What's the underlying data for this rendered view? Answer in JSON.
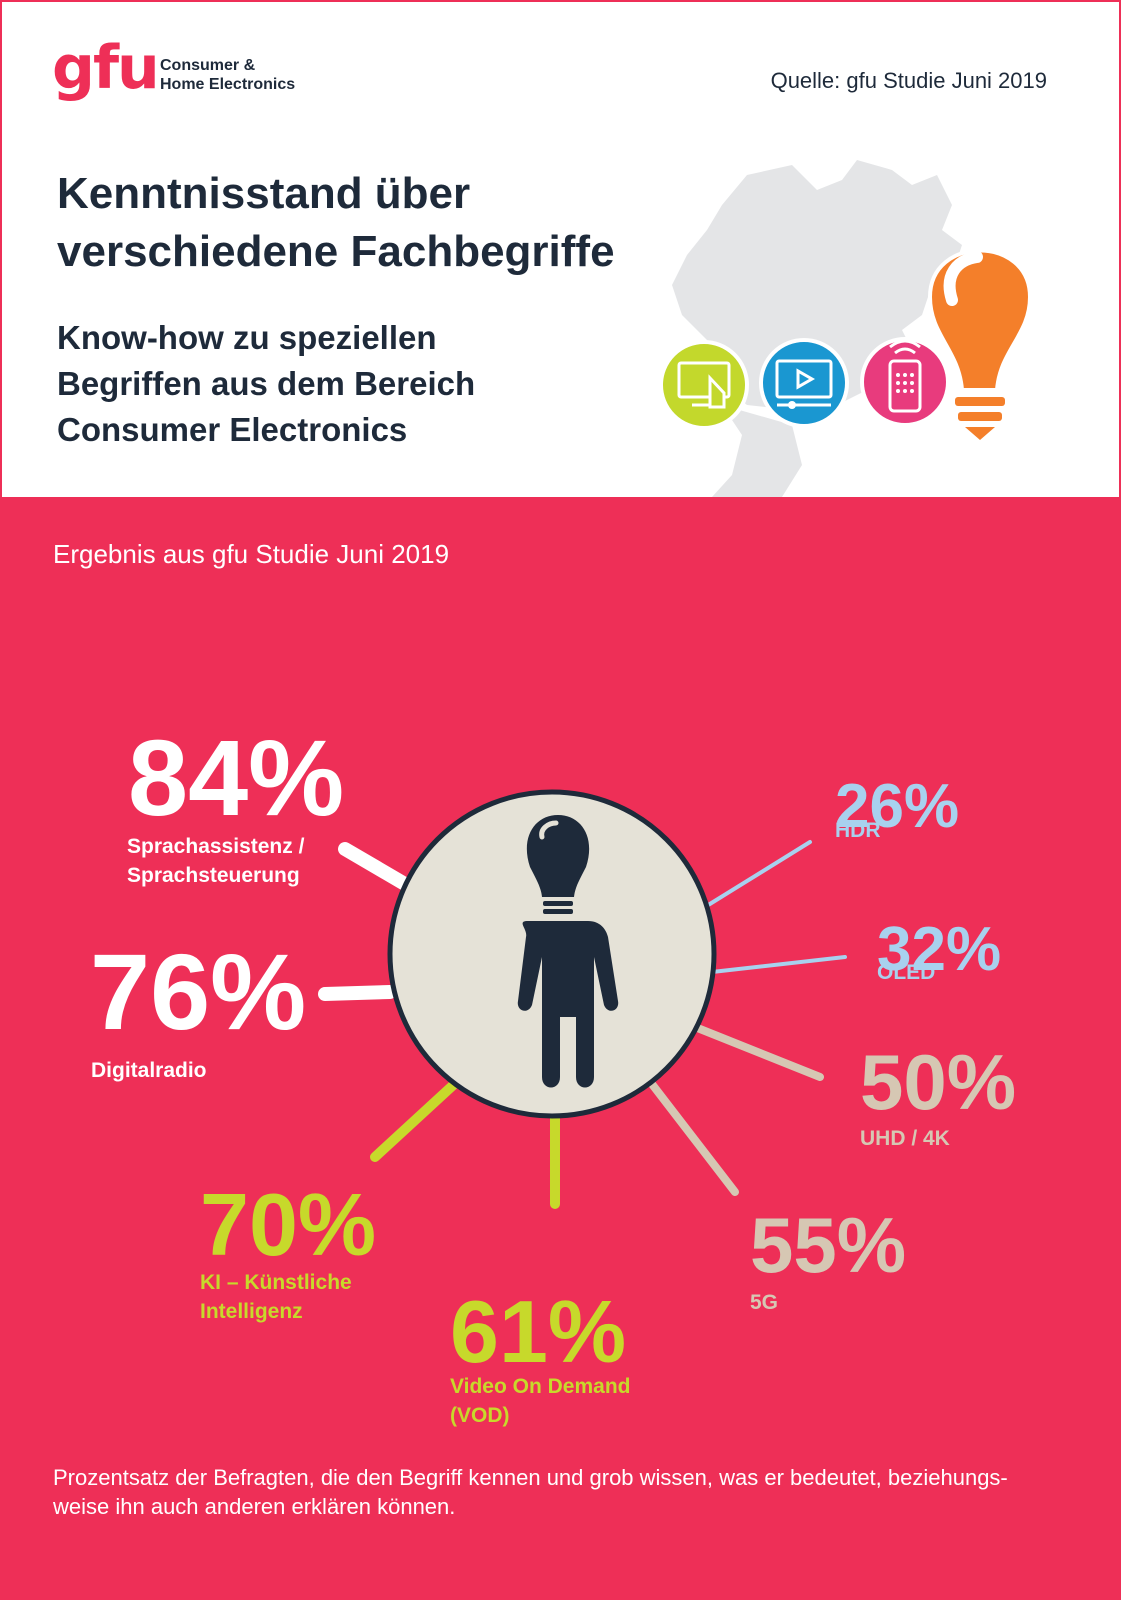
{
  "header": {
    "logo": "gfu",
    "logo_subtitle_line1": "Consumer &",
    "logo_subtitle_line2": "Home Electronics",
    "source": "Quelle: gfu Studie Juni 2019"
  },
  "intro": {
    "title": "Kenntnisstand über\nverschiedene Fachbegriffe",
    "subtitle": "Know-how zu speziellen\nBegriffen aus dem Bereich\nConsumer Electronics"
  },
  "main": {
    "result_title": "Ergebnis aus gfu Studie Juni 2019",
    "footnote": "Prozentsatz der Befragten, die den Begriff kennen und grob wissen, was er bedeutet, beziehungs-weise ihn auch anderen erklären können."
  },
  "colors": {
    "brand_red": "#ee2f57",
    "navy": "#1e2a3a",
    "white": "#ffffff",
    "light_blue": "#a8d1ee",
    "beige": "#d6c7b3",
    "lime": "#c7d92b",
    "circle_fill": "#e5e2d7"
  },
  "icons": [
    "touch-screen-icon",
    "video-play-icon",
    "remote-control-icon",
    "light-bulb-icon",
    "person-with-bulb-icon"
  ],
  "chart_data": {
    "type": "radial-percentages",
    "unit": "%",
    "items": [
      {
        "term": "Sprachassistenz / Sprachsteuerung",
        "value": 84,
        "pct_label": "84%",
        "lines": [
          "Sprachassistenz /",
          "Sprachsteuerung"
        ],
        "color": "#ffffff"
      },
      {
        "term": "Digitalradio",
        "value": 76,
        "pct_label": "76%",
        "lines": [
          "Digitalradio"
        ],
        "color": "#ffffff"
      },
      {
        "term": "KI – Künstliche Intelligenz",
        "value": 70,
        "pct_label": "70%",
        "lines": [
          "KI – Künstliche",
          "Intelligenz"
        ],
        "color": "#c7d92b"
      },
      {
        "term": "Video On Demand (VOD)",
        "value": 61,
        "pct_label": "61%",
        "lines": [
          "Video On Demand",
          "(VOD)"
        ],
        "color": "#c7d92b"
      },
      {
        "term": "5G",
        "value": 55,
        "pct_label": "55%",
        "lines": [
          "5G"
        ],
        "color": "#d6c7b3"
      },
      {
        "term": "UHD / 4K",
        "value": 50,
        "pct_label": "50%",
        "lines": [
          "UHD / 4K"
        ],
        "color": "#d6c7b3"
      },
      {
        "term": "OLED",
        "value": 32,
        "pct_label": "32%",
        "lines": [
          "OLED"
        ],
        "color": "#a8d1ee"
      },
      {
        "term": "HDR",
        "value": 26,
        "pct_label": "26%",
        "lines": [
          "HDR"
        ],
        "color": "#a8d1ee"
      }
    ]
  }
}
